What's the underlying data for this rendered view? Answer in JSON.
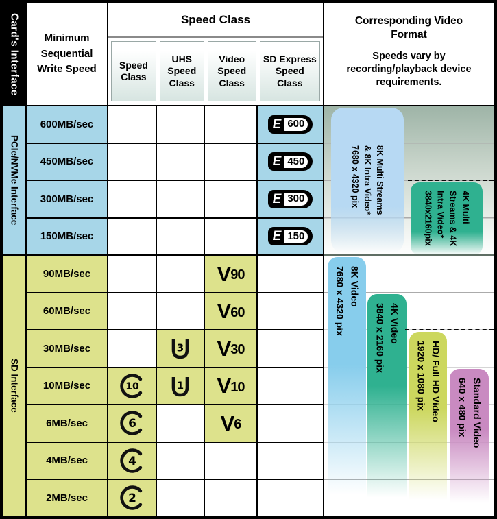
{
  "header": {
    "card_interface": "Card's Interface",
    "min_seq": "Minimum Sequential Write Speed",
    "speed_class_group": "Speed Class",
    "sub_columns": [
      "Speed Class",
      "UHS Speed Class",
      "Video Speed Class",
      "SD Express Speed Class"
    ],
    "video_format_title": "Corresponding Video Format",
    "video_format_note": "Speeds vary by recording/playback device requirements."
  },
  "colors": {
    "pcie_row": "#a7d6e8",
    "sd_row": "#dde28c",
    "cell_white": "#ffffff",
    "bar_8k_multi": "#b7d9f3",
    "bar_4k_multi": "#2fb190",
    "bar_8k_video": "#87cdec",
    "bar_4k_video": "#2fb190",
    "bar_hd_video": "#ccd75e",
    "bar_std_video": "#c98ac1",
    "gradient_top": "#9eb4a7"
  },
  "sections": [
    {
      "label": "PCIe/NVMe Interface",
      "color": "#a7d6e8",
      "rows": [
        {
          "speed": "600MB/sec",
          "icons": {
            "speed_class": null,
            "uhs": null,
            "video": null,
            "sd_express": "600"
          }
        },
        {
          "speed": "450MB/sec",
          "icons": {
            "speed_class": null,
            "uhs": null,
            "video": null,
            "sd_express": "450"
          }
        },
        {
          "speed": "300MB/sec",
          "icons": {
            "speed_class": null,
            "uhs": null,
            "video": null,
            "sd_express": "300"
          }
        },
        {
          "speed": "150MB/sec",
          "icons": {
            "speed_class": null,
            "uhs": null,
            "video": null,
            "sd_express": "150"
          }
        }
      ]
    },
    {
      "label": "SD Interface",
      "color": "#dde28c",
      "rows": [
        {
          "speed": "90MB/sec",
          "icons": {
            "speed_class": null,
            "uhs": null,
            "video": "90",
            "sd_express": null
          }
        },
        {
          "speed": "60MB/sec",
          "icons": {
            "speed_class": null,
            "uhs": null,
            "video": "60",
            "sd_express": null
          }
        },
        {
          "speed": "30MB/sec",
          "icons": {
            "speed_class": null,
            "uhs": "3",
            "video": "30",
            "sd_express": null
          }
        },
        {
          "speed": "10MB/sec",
          "icons": {
            "speed_class": "10",
            "uhs": "1",
            "video": "10",
            "sd_express": null
          }
        },
        {
          "speed": "6MB/sec",
          "icons": {
            "speed_class": "6",
            "uhs": null,
            "video": "6",
            "sd_express": null
          }
        },
        {
          "speed": "4MB/sec",
          "icons": {
            "speed_class": "4",
            "uhs": null,
            "video": null,
            "sd_express": null
          }
        },
        {
          "speed": "2MB/sec",
          "icons": {
            "speed_class": "2",
            "uhs": null,
            "video": null,
            "sd_express": null
          }
        }
      ]
    }
  ],
  "video_formats": [
    {
      "slug": "8k-multi-streams",
      "lines": [
        "8K Multi Streams",
        "& 8K Intra Video*",
        "7680 x 4320 pix"
      ],
      "color": "#b7d9f3"
    },
    {
      "slug": "4k-multi-streams",
      "lines": [
        "4K Multi",
        "Streams  & 4K",
        "Intra Video*",
        "3840x2160pix"
      ],
      "color": "#2fb190"
    },
    {
      "slug": "8k-video",
      "lines": [
        "8K Video",
        "7680 x 4320 pix"
      ],
      "color": "#87cdec"
    },
    {
      "slug": "4k-video",
      "lines": [
        "4K Video",
        "3840 x 2160 pix"
      ],
      "color": "#2fb190"
    },
    {
      "slug": "hd-full-hd-video",
      "lines": [
        "HD/ Full HD Video",
        "1920 x 1080 pix"
      ],
      "color": "#ccd75e"
    },
    {
      "slug": "standard-video",
      "lines": [
        "Standard Video",
        "640 x 480 pix"
      ],
      "color": "#c98ac1"
    }
  ]
}
